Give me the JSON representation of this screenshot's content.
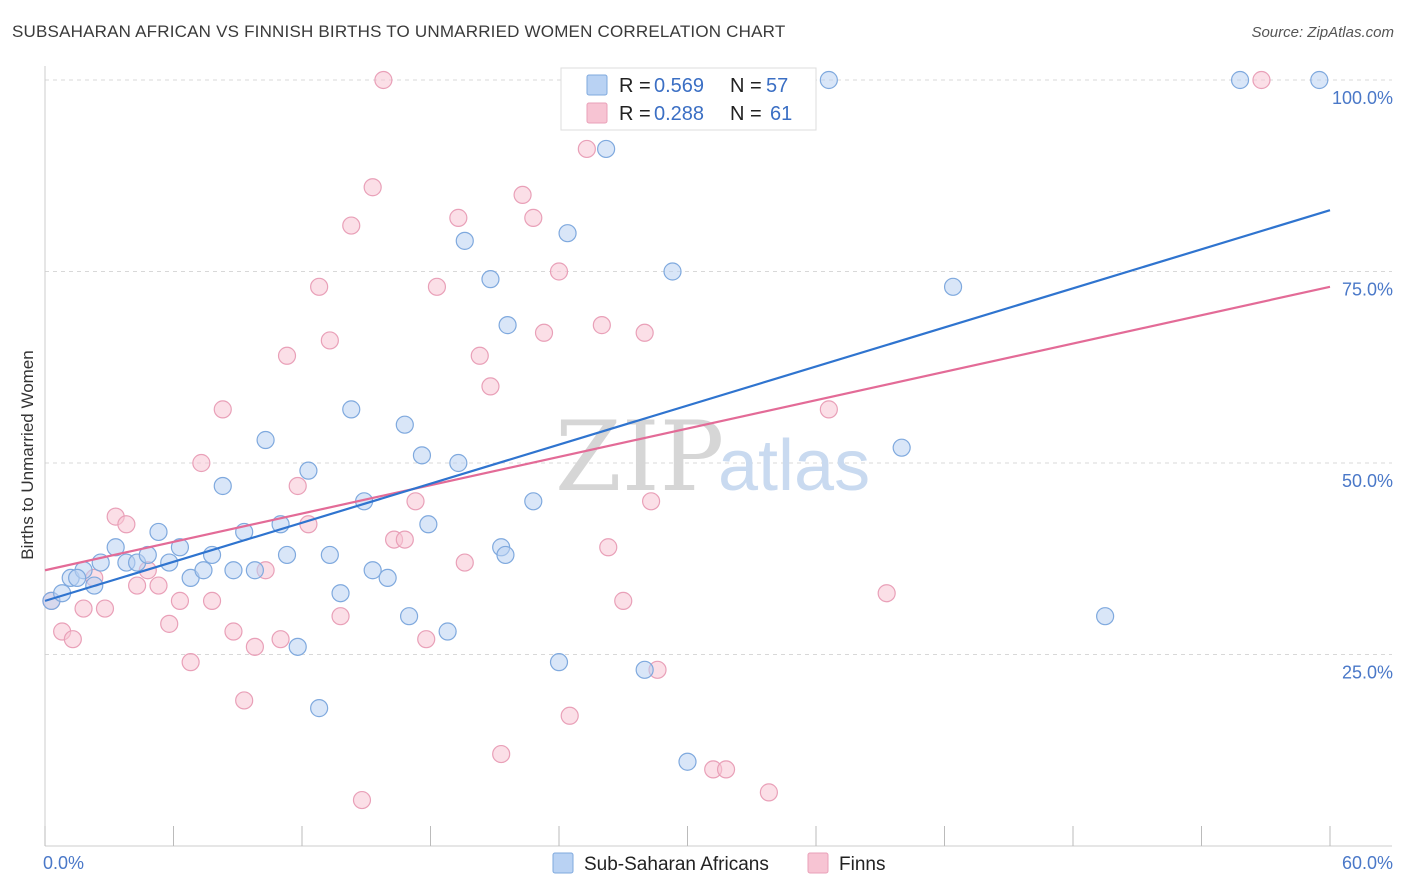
{
  "header": {
    "title": "SUBSAHARAN AFRICAN VS FINNISH BIRTHS TO UNMARRIED WOMEN CORRELATION CHART",
    "source": "Source: ZipAtlas.com"
  },
  "legend": {
    "r_label": "R =",
    "n_label": "N =",
    "rows": [
      {
        "r": "0.569",
        "n": "57",
        "color": "#a9c8f0"
      },
      {
        "r": "0.288",
        "n": "61",
        "color": "#f5b7c9"
      }
    ]
  },
  "watermark": {
    "zip": "ZIP",
    "atlas": "atlas"
  },
  "colors": {
    "blue_fill": "#b9d2f3",
    "blue_stroke": "#7fa9de",
    "blue_line": "#2f74cf",
    "pink_fill": "#f7c4d3",
    "pink_stroke": "#e9a0b8",
    "pink_line": "#e36b97",
    "grid": "#d8d8d8",
    "tick_text": "#4a78c8"
  },
  "chart_data": {
    "type": "scatter",
    "title": "SUBSAHARAN AFRICAN VS FINNISH BIRTHS TO UNMARRIED WOMEN CORRELATION CHART",
    "xlabel": "",
    "ylabel": "Births to Unmarried Women",
    "xlim": [
      0,
      60
    ],
    "ylim": [
      0,
      100
    ],
    "x_tick_labels": [
      "0.0%",
      "60.0%"
    ],
    "y_ticks": [
      25,
      50,
      75,
      100
    ],
    "y_tick_labels": [
      "25.0%",
      "50.0%",
      "75.0%",
      "100.0%"
    ],
    "grid": true,
    "legend_position": "top-center",
    "series": [
      {
        "name": "Sub-Saharan Africans",
        "r": 0.569,
        "n": 57,
        "trend": [
          [
            0,
            32
          ],
          [
            60,
            83
          ]
        ],
        "points": [
          [
            0.3,
            32
          ],
          [
            0.8,
            33
          ],
          [
            1.2,
            35
          ],
          [
            1.8,
            36
          ],
          [
            2.3,
            34
          ],
          [
            2.6,
            37
          ],
          [
            3.3,
            39
          ],
          [
            3.8,
            37
          ],
          [
            4.3,
            37
          ],
          [
            4.8,
            38
          ],
          [
            5.3,
            41
          ],
          [
            5.8,
            37
          ],
          [
            6.3,
            39
          ],
          [
            6.8,
            35
          ],
          [
            7.4,
            36
          ],
          [
            7.8,
            38
          ],
          [
            8.3,
            47
          ],
          [
            8.8,
            36
          ],
          [
            9.3,
            41
          ],
          [
            9.8,
            36
          ],
          [
            10.3,
            53
          ],
          [
            11.0,
            42
          ],
          [
            11.3,
            38
          ],
          [
            11.8,
            26
          ],
          [
            12.3,
            49
          ],
          [
            12.8,
            18
          ],
          [
            13.3,
            38
          ],
          [
            13.8,
            33
          ],
          [
            14.3,
            57
          ],
          [
            14.9,
            45
          ],
          [
            15.3,
            36
          ],
          [
            16.0,
            35
          ],
          [
            16.8,
            55
          ],
          [
            17.0,
            30
          ],
          [
            17.6,
            51
          ],
          [
            17.9,
            42
          ],
          [
            18.8,
            28
          ],
          [
            19.3,
            50
          ],
          [
            19.6,
            79
          ],
          [
            20.8,
            74
          ],
          [
            21.3,
            39
          ],
          [
            21.5,
            38
          ],
          [
            21.6,
            68
          ],
          [
            22.8,
            45
          ],
          [
            24.0,
            24
          ],
          [
            24.4,
            80
          ],
          [
            26.2,
            91
          ],
          [
            28.0,
            23
          ],
          [
            29.3,
            75
          ],
          [
            30.0,
            11
          ],
          [
            36.6,
            100
          ],
          [
            40.0,
            52
          ],
          [
            42.4,
            73
          ],
          [
            49.5,
            30
          ],
          [
            55.8,
            100
          ],
          [
            59.5,
            100
          ],
          [
            1.5,
            35
          ]
        ]
      },
      {
        "name": "Finns",
        "r": 0.288,
        "n": 61,
        "trend": [
          [
            0,
            36
          ],
          [
            60,
            73
          ]
        ],
        "points": [
          [
            0.3,
            32
          ],
          [
            0.8,
            28
          ],
          [
            1.3,
            27
          ],
          [
            1.8,
            31
          ],
          [
            2.3,
            35
          ],
          [
            2.8,
            31
          ],
          [
            3.3,
            43
          ],
          [
            3.8,
            42
          ],
          [
            4.3,
            34
          ],
          [
            4.8,
            36
          ],
          [
            5.3,
            34
          ],
          [
            5.8,
            29
          ],
          [
            6.3,
            32
          ],
          [
            6.8,
            24
          ],
          [
            7.3,
            50
          ],
          [
            7.8,
            32
          ],
          [
            8.3,
            57
          ],
          [
            8.8,
            28
          ],
          [
            9.3,
            19
          ],
          [
            9.8,
            26
          ],
          [
            10.3,
            36
          ],
          [
            11.0,
            27
          ],
          [
            11.3,
            64
          ],
          [
            11.8,
            47
          ],
          [
            12.3,
            42
          ],
          [
            12.8,
            73
          ],
          [
            13.3,
            66
          ],
          [
            13.8,
            30
          ],
          [
            14.3,
            81
          ],
          [
            14.8,
            6
          ],
          [
            15.3,
            86
          ],
          [
            15.8,
            100
          ],
          [
            16.3,
            40
          ],
          [
            16.8,
            40
          ],
          [
            17.3,
            45
          ],
          [
            17.8,
            27
          ],
          [
            18.3,
            73
          ],
          [
            19.3,
            82
          ],
          [
            19.6,
            37
          ],
          [
            20.3,
            64
          ],
          [
            20.8,
            60
          ],
          [
            21.3,
            12
          ],
          [
            22.3,
            85
          ],
          [
            22.8,
            82
          ],
          [
            23.3,
            67
          ],
          [
            24.0,
            75
          ],
          [
            24.5,
            17
          ],
          [
            25.3,
            91
          ],
          [
            26.0,
            68
          ],
          [
            26.3,
            39
          ],
          [
            27.0,
            32
          ],
          [
            28.0,
            67
          ],
          [
            28.3,
            45
          ],
          [
            28.6,
            23
          ],
          [
            31.2,
            10
          ],
          [
            31.8,
            10
          ],
          [
            33.8,
            7
          ],
          [
            35.3,
            100
          ],
          [
            36.6,
            57
          ],
          [
            39.3,
            33
          ],
          [
            56.8,
            100
          ]
        ]
      }
    ]
  },
  "bottom_legend": [
    {
      "label": "Sub-Saharan Africans"
    },
    {
      "label": "Finns"
    }
  ]
}
